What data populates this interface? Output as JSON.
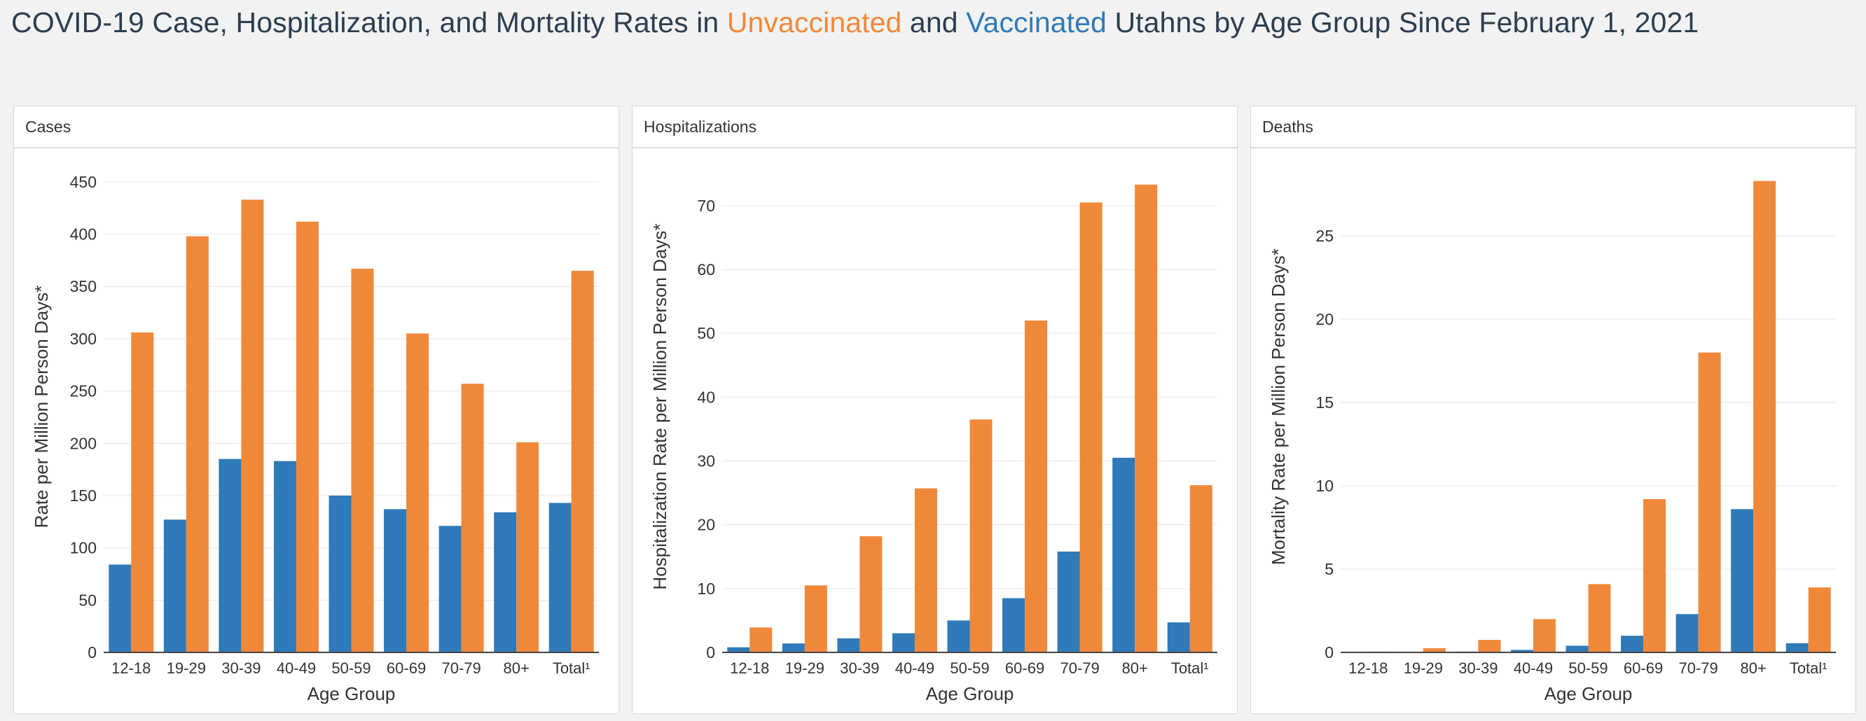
{
  "title": {
    "part1": "COVID-19 Case, Hospitalization, and Mortality Rates in ",
    "unvaccinated": "Unvaccinated",
    "part2": " and ",
    "vaccinated": "Vaccinated",
    "part3": " Utahns by Age Group Since February 1, 2021"
  },
  "colors": {
    "vaccinated": "#2f7ab8",
    "unvaccinated": "#f0883a",
    "grid": "#e6e6e6",
    "axis": "#444444"
  },
  "chart_data": [
    {
      "type": "bar",
      "panel_title": "Cases",
      "xlabel": "Age Group",
      "ylabel": "Rate per Million Person Days*",
      "categories": [
        "12-18",
        "19-29",
        "30-39",
        "40-49",
        "50-59",
        "60-69",
        "70-79",
        "80+",
        "Total¹"
      ],
      "ylim": [
        0,
        470
      ],
      "yticks": [
        0,
        50,
        100,
        150,
        200,
        250,
        300,
        350,
        400,
        450
      ],
      "grid": true,
      "series": [
        {
          "key": "vaccinated",
          "values": [
            84,
            127,
            185,
            183,
            150,
            137,
            121,
            134,
            143
          ]
        },
        {
          "key": "unvaccinated",
          "values": [
            306,
            398,
            433,
            412,
            367,
            305,
            257,
            201,
            365
          ]
        }
      ]
    },
    {
      "type": "bar",
      "panel_title": "Hospitalizations",
      "xlabel": "Age Group",
      "ylabel": "Hospitalization Rate per Million Person Days*",
      "categories": [
        "12-18",
        "19-29",
        "30-39",
        "40-49",
        "50-59",
        "60-69",
        "70-79",
        "80+",
        "Total¹"
      ],
      "ylim": [
        0,
        77
      ],
      "yticks": [
        0,
        10,
        20,
        30,
        40,
        50,
        60,
        70
      ],
      "grid": true,
      "series": [
        {
          "key": "vaccinated",
          "values": [
            0.8,
            1.4,
            2.2,
            3.0,
            5.0,
            8.5,
            15.8,
            30.5,
            4.7
          ]
        },
        {
          "key": "unvaccinated",
          "values": [
            3.9,
            10.5,
            18.2,
            25.7,
            36.5,
            52.0,
            70.5,
            73.3,
            26.2
          ]
        }
      ]
    },
    {
      "type": "bar",
      "panel_title": "Deaths",
      "xlabel": "Age Group",
      "ylabel": "Mortality Rate per Million Person Days*",
      "categories": [
        "12-18",
        "19-29",
        "30-39",
        "40-49",
        "50-59",
        "60-69",
        "70-79",
        "80+",
        "Total¹"
      ],
      "ylim": [
        0,
        29.5
      ],
      "yticks": [
        0,
        5,
        10,
        15,
        20,
        25
      ],
      "grid": true,
      "series": [
        {
          "key": "vaccinated",
          "values": [
            0,
            0,
            0.05,
            0.15,
            0.4,
            1.0,
            2.3,
            8.6,
            0.55
          ]
        },
        {
          "key": "unvaccinated",
          "values": [
            0.05,
            0.25,
            0.75,
            2.0,
            4.1,
            9.2,
            18.0,
            28.3,
            3.9
          ]
        }
      ]
    }
  ]
}
